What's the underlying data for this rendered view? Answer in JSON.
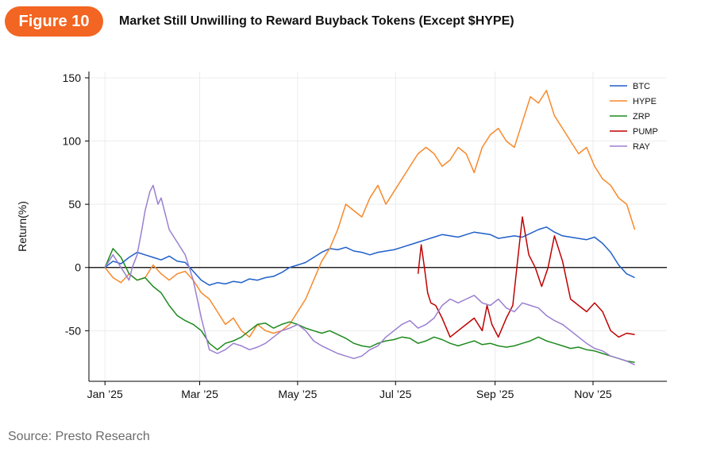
{
  "header": {
    "figure_label": "Figure 10",
    "title": "Market Still Unwilling to Reward Buyback Tokens (Except $HYPE)"
  },
  "footer": {
    "source": "Source: Presto Research"
  },
  "chart_data": {
    "type": "line",
    "title": "Market Still Unwilling to Reward Buyback Tokens (Except $HYPE)",
    "xlabel": "",
    "ylabel": "Return(%)",
    "xlim": [
      -10,
      350
    ],
    "ylim": [
      -90,
      155
    ],
    "y_ticks": [
      150,
      100,
      50,
      0,
      -50
    ],
    "y_tick_labels": [
      "150",
      "100",
      "50",
      "0",
      "-50"
    ],
    "x_ticks": [
      0,
      59,
      120,
      181,
      243,
      304
    ],
    "x_tick_labels": [
      "Jan ’25",
      "Mar ’25",
      "May ’25",
      "Jul ’25",
      "Sep ’25",
      "Nov ’25"
    ],
    "x_unit": "days since 2025-01-01",
    "zero_line": true,
    "legend_position": "top-right",
    "series": [
      {
        "name": "BTC",
        "color": "#1f5fc9",
        "x": [
          0,
          5,
          10,
          15,
          20,
          25,
          30,
          35,
          40,
          45,
          50,
          55,
          60,
          65,
          70,
          75,
          80,
          85,
          90,
          95,
          100,
          105,
          110,
          115,
          120,
          125,
          130,
          135,
          140,
          145,
          150,
          155,
          160,
          165,
          170,
          175,
          180,
          185,
          190,
          195,
          200,
          205,
          210,
          215,
          220,
          225,
          230,
          235,
          240,
          245,
          250,
          255,
          260,
          265,
          270,
          275,
          280,
          285,
          290,
          295,
          300,
          305,
          310,
          315,
          320,
          325,
          330
        ],
        "y": [
          0,
          5,
          3,
          8,
          12,
          10,
          8,
          6,
          9,
          5,
          4,
          -3,
          -10,
          -14,
          -12,
          -13,
          -11,
          -12,
          -9,
          -10,
          -8,
          -7,
          -4,
          0,
          2,
          4,
          8,
          12,
          15,
          14,
          16,
          13,
          12,
          10,
          12,
          13,
          14,
          16,
          18,
          20,
          22,
          24,
          26,
          25,
          24,
          26,
          28,
          27,
          26,
          23,
          24,
          25,
          24,
          27,
          30,
          32,
          28,
          25,
          24,
          23,
          22,
          24,
          19,
          12,
          2,
          -5,
          -8
        ]
      },
      {
        "name": "HYPE",
        "color": "#f7892b",
        "x": [
          0,
          5,
          10,
          15,
          20,
          25,
          30,
          35,
          40,
          45,
          50,
          55,
          60,
          65,
          70,
          75,
          80,
          85,
          90,
          95,
          100,
          105,
          110,
          115,
          120,
          125,
          130,
          135,
          140,
          145,
          150,
          155,
          160,
          165,
          170,
          175,
          180,
          185,
          190,
          195,
          200,
          205,
          210,
          215,
          220,
          225,
          230,
          235,
          240,
          245,
          250,
          255,
          260,
          265,
          270,
          275,
          280,
          285,
          290,
          295,
          300,
          305,
          310,
          315,
          320,
          325,
          330
        ],
        "y": [
          0,
          -8,
          -12,
          -5,
          -10,
          -8,
          2,
          -5,
          -10,
          -5,
          -3,
          -10,
          -20,
          -25,
          -35,
          -45,
          -40,
          -50,
          -55,
          -45,
          -50,
          -52,
          -50,
          -45,
          -35,
          -25,
          -10,
          5,
          15,
          30,
          50,
          45,
          40,
          55,
          65,
          50,
          60,
          70,
          80,
          90,
          95,
          90,
          80,
          85,
          95,
          90,
          75,
          95,
          105,
          110,
          100,
          95,
          115,
          135,
          130,
          140,
          120,
          110,
          100,
          90,
          95,
          80,
          70,
          65,
          55,
          50,
          30
        ]
      },
      {
        "name": "ZRP",
        "color": "#1e8a1e",
        "x": [
          0,
          5,
          10,
          15,
          20,
          25,
          30,
          35,
          40,
          45,
          50,
          55,
          60,
          65,
          70,
          75,
          80,
          85,
          90,
          95,
          100,
          105,
          110,
          115,
          120,
          125,
          130,
          135,
          140,
          145,
          150,
          155,
          160,
          165,
          170,
          175,
          180,
          185,
          190,
          195,
          200,
          205,
          210,
          215,
          220,
          225,
          230,
          235,
          240,
          245,
          250,
          255,
          260,
          265,
          270,
          275,
          280,
          285,
          290,
          295,
          300,
          305,
          310,
          315,
          320,
          325,
          330
        ],
        "y": [
          0,
          15,
          8,
          -5,
          -10,
          -8,
          -15,
          -20,
          -30,
          -38,
          -42,
          -45,
          -50,
          -60,
          -65,
          -60,
          -58,
          -55,
          -50,
          -45,
          -44,
          -48,
          -45,
          -43,
          -45,
          -48,
          -50,
          -52,
          -50,
          -53,
          -56,
          -60,
          -62,
          -63,
          -60,
          -58,
          -57,
          -55,
          -56,
          -60,
          -58,
          -55,
          -57,
          -60,
          -62,
          -60,
          -58,
          -61,
          -60,
          -62,
          -63,
          -62,
          -60,
          -58,
          -55,
          -58,
          -60,
          -62,
          -64,
          -63,
          -65,
          -66,
          -68,
          -70,
          -72,
          -74,
          -75
        ]
      },
      {
        "name": "PUMP",
        "color": "#c00000",
        "x": [
          195,
          197,
          199,
          201,
          203,
          206,
          210,
          215,
          220,
          225,
          230,
          235,
          238,
          241,
          245,
          250,
          254,
          257,
          260,
          264,
          268,
          272,
          276,
          280,
          285,
          290,
          295,
          300,
          305,
          310,
          315,
          320,
          325,
          330
        ],
        "y": [
          -5,
          18,
          0,
          -20,
          -28,
          -30,
          -40,
          -55,
          -50,
          -45,
          -40,
          -50,
          -30,
          -45,
          -55,
          -40,
          -30,
          5,
          40,
          10,
          0,
          -15,
          0,
          25,
          5,
          -25,
          -30,
          -35,
          -28,
          -35,
          -50,
          -55,
          -52,
          -53
        ]
      },
      {
        "name": "RAY",
        "color": "#9b7fd0",
        "x": [
          0,
          5,
          10,
          15,
          17,
          20,
          23,
          25,
          28,
          30,
          33,
          35,
          38,
          40,
          45,
          50,
          55,
          60,
          65,
          70,
          75,
          80,
          85,
          90,
          95,
          100,
          105,
          110,
          115,
          120,
          125,
          130,
          135,
          140,
          145,
          150,
          155,
          160,
          165,
          170,
          175,
          180,
          185,
          190,
          195,
          200,
          205,
          210,
          215,
          220,
          225,
          230,
          235,
          240,
          245,
          250,
          255,
          260,
          265,
          270,
          275,
          280,
          285,
          290,
          295,
          300,
          305,
          310,
          315,
          320,
          325,
          330
        ],
        "y": [
          0,
          10,
          0,
          -10,
          0,
          10,
          30,
          45,
          60,
          65,
          50,
          55,
          40,
          30,
          20,
          10,
          -10,
          -40,
          -65,
          -68,
          -65,
          -60,
          -62,
          -65,
          -63,
          -60,
          -55,
          -50,
          -48,
          -45,
          -50,
          -58,
          -62,
          -65,
          -68,
          -70,
          -72,
          -70,
          -65,
          -62,
          -55,
          -50,
          -45,
          -42,
          -48,
          -45,
          -40,
          -30,
          -25,
          -28,
          -25,
          -22,
          -28,
          -30,
          -25,
          -32,
          -35,
          -28,
          -30,
          -32,
          -38,
          -42,
          -45,
          -50,
          -55,
          -60,
          -64,
          -66,
          -70,
          -72,
          -74,
          -77
        ]
      }
    ]
  }
}
